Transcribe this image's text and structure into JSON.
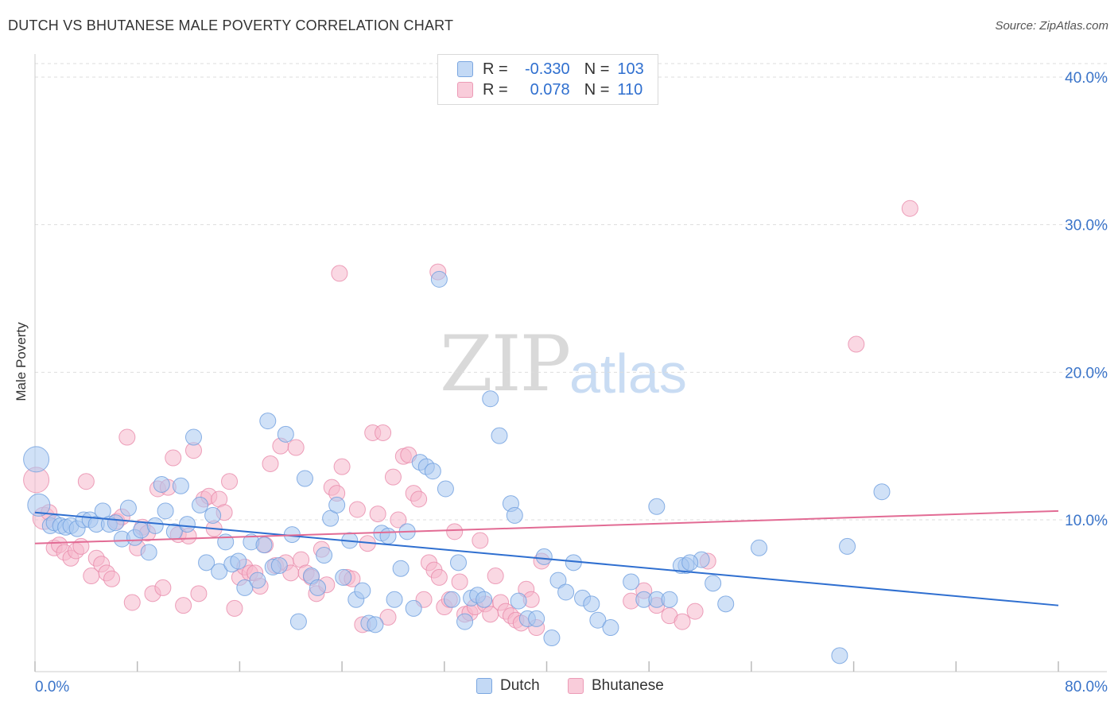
{
  "title": "DUTCH VS BHUTANESE MALE POVERTY CORRELATION CHART",
  "source": "Source: ZipAtlas.com",
  "watermark": {
    "zip": "ZIP",
    "atlas": "atlas"
  },
  "legend": {
    "rows": [
      {
        "r_label": "R =",
        "r_value": "-0.330",
        "n_label": "N =",
        "n_value": "103"
      },
      {
        "r_label": "R =",
        "r_value": "0.078",
        "n_label": "N =",
        "n_value": "110"
      }
    ]
  },
  "bottom_legend": [
    "Dutch",
    "Bhutanese"
  ],
  "colors": {
    "dutch_fill": "#a9c8f0",
    "dutch_stroke": "#6d9ede",
    "dutch_line": "#2f6fd0",
    "bhutanese_fill": "#f6b8cc",
    "bhutanese_stroke": "#e88aaa",
    "bhutanese_line": "#e26b94",
    "tick_label": "#3a74c9",
    "grid": "#dddddd"
  },
  "chart_data": {
    "type": "scatter",
    "title": "DUTCH VS BHUTANESE MALE POVERTY CORRELATION CHART",
    "xlabel": "",
    "ylabel": "Male Poverty",
    "xlim": [
      0,
      80
    ],
    "ylim": [
      0,
      42
    ],
    "x_tick_labels": [
      "0.0%",
      "80.0%"
    ],
    "y_ticks": [
      10,
      20,
      30,
      40
    ],
    "y_tick_labels": [
      "10.0%",
      "20.0%",
      "30.0%",
      "40.0%"
    ],
    "grid": true,
    "legend_position": "top-center",
    "series": [
      {
        "name": "Dutch",
        "r": -0.33,
        "n": 103,
        "trend": {
          "x": [
            0,
            80
          ],
          "y": [
            10.5,
            4.2
          ]
        },
        "points": [
          [
            0.1,
            14.1,
            16
          ],
          [
            0.3,
            11.0,
            14
          ],
          [
            1.2,
            9.6,
            10
          ],
          [
            1.5,
            9.8,
            10
          ],
          [
            2.0,
            9.6,
            10
          ],
          [
            2.4,
            9.5,
            10
          ],
          [
            2.8,
            9.6,
            10
          ],
          [
            3.3,
            9.4,
            10
          ],
          [
            3.8,
            10.0,
            10
          ],
          [
            4.3,
            10.0,
            10
          ],
          [
            4.8,
            9.7,
            10
          ],
          [
            5.3,
            10.6,
            10
          ],
          [
            5.8,
            9.7,
            10
          ],
          [
            6.3,
            9.8,
            10
          ],
          [
            6.8,
            8.7,
            10
          ],
          [
            7.3,
            10.8,
            10
          ],
          [
            7.8,
            8.8,
            10
          ],
          [
            8.3,
            9.3,
            10
          ],
          [
            8.9,
            7.8,
            10
          ],
          [
            9.4,
            9.6,
            10
          ],
          [
            9.9,
            12.4,
            10
          ],
          [
            10.2,
            10.6,
            10
          ],
          [
            10.9,
            9.2,
            10
          ],
          [
            11.4,
            12.3,
            10
          ],
          [
            11.9,
            9.7,
            10
          ],
          [
            12.4,
            15.6,
            10
          ],
          [
            12.9,
            11.0,
            10
          ],
          [
            13.4,
            7.1,
            10
          ],
          [
            13.9,
            10.3,
            10
          ],
          [
            14.4,
            6.5,
            10
          ],
          [
            14.9,
            8.5,
            10
          ],
          [
            15.4,
            7.0,
            10
          ],
          [
            15.9,
            7.2,
            10
          ],
          [
            16.4,
            5.4,
            10
          ],
          [
            16.9,
            8.5,
            10
          ],
          [
            17.4,
            5.9,
            10
          ],
          [
            17.9,
            8.3,
            10
          ],
          [
            18.2,
            16.7,
            10
          ],
          [
            18.6,
            6.8,
            10
          ],
          [
            19.1,
            6.9,
            10
          ],
          [
            19.6,
            15.8,
            10
          ],
          [
            20.1,
            9.0,
            10
          ],
          [
            20.6,
            3.1,
            10
          ],
          [
            21.1,
            12.8,
            10
          ],
          [
            21.6,
            6.2,
            10
          ],
          [
            22.1,
            5.4,
            10
          ],
          [
            22.6,
            7.6,
            10
          ],
          [
            23.1,
            10.1,
            10
          ],
          [
            23.6,
            11.0,
            10
          ],
          [
            24.1,
            6.1,
            10
          ],
          [
            24.6,
            8.6,
            10
          ],
          [
            25.1,
            4.6,
            10
          ],
          [
            25.6,
            5.2,
            10
          ],
          [
            26.1,
            3.0,
            10
          ],
          [
            26.6,
            2.9,
            10
          ],
          [
            27.1,
            9.1,
            10
          ],
          [
            27.6,
            8.9,
            10
          ],
          [
            28.1,
            4.6,
            10
          ],
          [
            28.6,
            6.7,
            10
          ],
          [
            29.1,
            9.2,
            10
          ],
          [
            29.6,
            4.0,
            10
          ],
          [
            30.1,
            13.9,
            10
          ],
          [
            30.6,
            13.6,
            10
          ],
          [
            31.1,
            13.3,
            10
          ],
          [
            31.6,
            26.3,
            10
          ],
          [
            32.1,
            12.1,
            10
          ],
          [
            32.6,
            4.6,
            10
          ],
          [
            33.1,
            7.1,
            10
          ],
          [
            33.6,
            3.1,
            10
          ],
          [
            34.1,
            4.7,
            10
          ],
          [
            34.6,
            4.9,
            10
          ],
          [
            35.1,
            4.6,
            10
          ],
          [
            35.6,
            18.2,
            10
          ],
          [
            36.3,
            15.7,
            10
          ],
          [
            37.2,
            11.1,
            10
          ],
          [
            37.5,
            10.3,
            10
          ],
          [
            37.8,
            4.5,
            10
          ],
          [
            38.5,
            3.3,
            10
          ],
          [
            39.2,
            3.3,
            10
          ],
          [
            39.8,
            7.5,
            10
          ],
          [
            40.4,
            2.0,
            10
          ],
          [
            40.9,
            5.9,
            10
          ],
          [
            41.5,
            5.1,
            10
          ],
          [
            42.1,
            7.1,
            10
          ],
          [
            42.8,
            4.7,
            10
          ],
          [
            43.5,
            4.3,
            10
          ],
          [
            44.0,
            3.2,
            10
          ],
          [
            45.0,
            2.7,
            10
          ],
          [
            46.6,
            5.8,
            10
          ],
          [
            47.6,
            4.6,
            10
          ],
          [
            48.6,
            10.9,
            10
          ],
          [
            48.6,
            4.6,
            10
          ],
          [
            49.6,
            4.6,
            10
          ],
          [
            50.9,
            6.9,
            10
          ],
          [
            52.1,
            7.3,
            10
          ],
          [
            53.0,
            5.7,
            10
          ],
          [
            54.0,
            4.3,
            10
          ],
          [
            56.6,
            8.1,
            10
          ],
          [
            62.9,
            0.8,
            10
          ],
          [
            63.5,
            8.2,
            10
          ],
          [
            66.2,
            11.9,
            10
          ],
          [
            50.5,
            6.9,
            10
          ],
          [
            51.2,
            7.1,
            10
          ]
        ]
      },
      {
        "name": "Bhutanese",
        "r": 0.078,
        "n": 110,
        "trend": {
          "x": [
            0,
            80
          ],
          "y": [
            8.4,
            10.6
          ]
        },
        "points": [
          [
            0.1,
            12.7,
            16
          ],
          [
            0.7,
            10.1,
            14
          ],
          [
            1.1,
            10.5,
            10
          ],
          [
            1.5,
            8.1,
            10
          ],
          [
            1.9,
            8.3,
            10
          ],
          [
            2.3,
            7.8,
            10
          ],
          [
            2.8,
            7.4,
            10
          ],
          [
            3.2,
            7.9,
            10
          ],
          [
            3.6,
            8.2,
            10
          ],
          [
            4.0,
            12.6,
            10
          ],
          [
            4.4,
            6.2,
            10
          ],
          [
            4.8,
            7.4,
            10
          ],
          [
            5.2,
            7.0,
            10
          ],
          [
            5.6,
            6.4,
            10
          ],
          [
            6.0,
            6.0,
            10
          ],
          [
            6.4,
            9.9,
            10
          ],
          [
            6.8,
            10.2,
            10
          ],
          [
            7.2,
            15.6,
            10
          ],
          [
            7.6,
            4.4,
            10
          ],
          [
            8.0,
            8.1,
            10
          ],
          [
            8.4,
            9.5,
            10
          ],
          [
            8.8,
            9.1,
            10
          ],
          [
            9.2,
            5.0,
            10
          ],
          [
            9.6,
            12.1,
            10
          ],
          [
            10.0,
            5.4,
            10
          ],
          [
            10.4,
            12.2,
            10
          ],
          [
            10.8,
            14.2,
            10
          ],
          [
            11.2,
            9.0,
            10
          ],
          [
            11.6,
            4.2,
            10
          ],
          [
            12.0,
            8.9,
            10
          ],
          [
            12.4,
            14.7,
            10
          ],
          [
            12.8,
            5.0,
            10
          ],
          [
            13.2,
            11.4,
            10
          ],
          [
            13.6,
            11.6,
            10
          ],
          [
            14.0,
            9.4,
            10
          ],
          [
            14.4,
            11.4,
            10
          ],
          [
            14.8,
            10.5,
            10
          ],
          [
            15.2,
            12.6,
            10
          ],
          [
            15.6,
            4.0,
            10
          ],
          [
            16.0,
            6.1,
            10
          ],
          [
            16.4,
            6.8,
            10
          ],
          [
            16.8,
            6.4,
            10
          ],
          [
            17.2,
            6.4,
            10
          ],
          [
            17.6,
            5.5,
            10
          ],
          [
            18.0,
            8.3,
            10
          ],
          [
            18.4,
            13.8,
            10
          ],
          [
            18.8,
            6.9,
            10
          ],
          [
            19.2,
            15.0,
            10
          ],
          [
            19.6,
            7.1,
            10
          ],
          [
            20.0,
            6.4,
            10
          ],
          [
            20.4,
            14.9,
            10
          ],
          [
            20.8,
            7.3,
            10
          ],
          [
            21.2,
            6.4,
            10
          ],
          [
            21.6,
            6.1,
            10
          ],
          [
            22.0,
            5.0,
            10
          ],
          [
            22.4,
            8.0,
            10
          ],
          [
            22.8,
            5.6,
            10
          ],
          [
            23.2,
            12.2,
            10
          ],
          [
            23.6,
            11.8,
            10
          ],
          [
            24.0,
            13.6,
            10
          ],
          [
            24.4,
            6.1,
            10
          ],
          [
            24.8,
            6.0,
            10
          ],
          [
            25.2,
            10.7,
            10
          ],
          [
            25.6,
            2.9,
            10
          ],
          [
            26.0,
            8.4,
            10
          ],
          [
            26.4,
            15.9,
            10
          ],
          [
            26.8,
            10.4,
            10
          ],
          [
            27.2,
            15.9,
            10
          ],
          [
            27.6,
            3.4,
            10
          ],
          [
            28.0,
            12.9,
            10
          ],
          [
            28.4,
            10.0,
            10
          ],
          [
            28.8,
            14.3,
            10
          ],
          [
            29.2,
            14.4,
            10
          ],
          [
            29.6,
            11.8,
            10
          ],
          [
            30.0,
            11.4,
            10
          ],
          [
            30.4,
            4.6,
            10
          ],
          [
            30.8,
            7.1,
            10
          ],
          [
            31.2,
            6.6,
            10
          ],
          [
            31.6,
            6.1,
            10
          ],
          [
            32.0,
            4.1,
            10
          ],
          [
            32.4,
            4.6,
            10
          ],
          [
            32.8,
            9.2,
            10
          ],
          [
            33.2,
            5.8,
            10
          ],
          [
            33.6,
            3.6,
            10
          ],
          [
            34.0,
            3.7,
            10
          ],
          [
            34.4,
            4.1,
            10
          ],
          [
            34.8,
            8.6,
            10
          ],
          [
            35.2,
            4.3,
            10
          ],
          [
            35.6,
            3.6,
            10
          ],
          [
            36.0,
            6.2,
            10
          ],
          [
            36.4,
            4.4,
            10
          ],
          [
            36.8,
            3.8,
            10
          ],
          [
            37.2,
            3.5,
            10
          ],
          [
            37.6,
            3.2,
            10
          ],
          [
            38.0,
            3.0,
            10
          ],
          [
            38.4,
            5.3,
            10
          ],
          [
            38.8,
            4.6,
            10
          ],
          [
            39.2,
            2.7,
            10
          ],
          [
            39.6,
            7.2,
            10
          ],
          [
            46.6,
            4.5,
            10
          ],
          [
            47.6,
            5.2,
            10
          ],
          [
            48.6,
            4.2,
            10
          ],
          [
            49.6,
            3.5,
            10
          ],
          [
            50.6,
            3.1,
            10
          ],
          [
            51.6,
            3.8,
            10
          ],
          [
            52.6,
            7.2,
            10
          ],
          [
            23.8,
            26.7,
            10
          ],
          [
            31.5,
            26.8,
            10
          ],
          [
            68.4,
            31.1,
            10
          ],
          [
            64.2,
            21.9,
            10
          ]
        ]
      }
    ]
  }
}
